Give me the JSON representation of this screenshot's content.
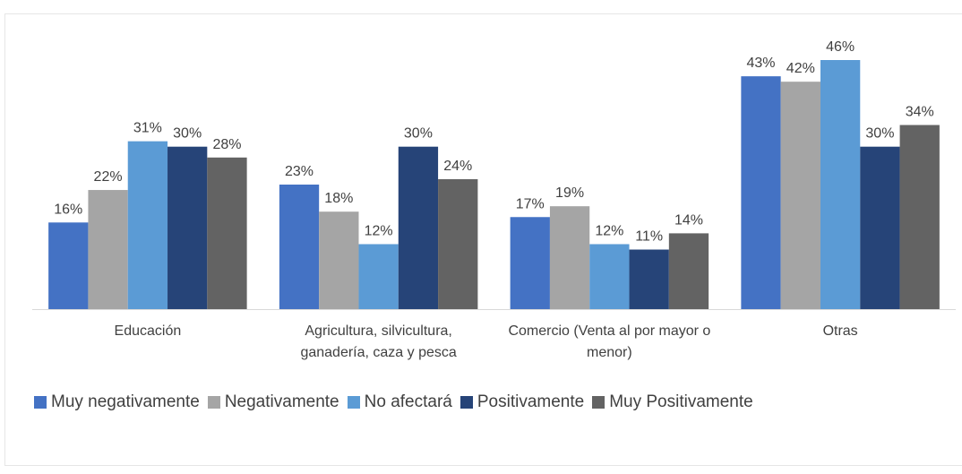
{
  "chart_data": {
    "type": "bar",
    "categories": [
      "Educación",
      "Agricultura, silvicultura, ganadería, caza y pesca",
      "Comercio (Venta al por mayor o menor)",
      "Otras"
    ],
    "series": [
      {
        "name": "Muy negativamente",
        "color": "#4472c4",
        "values": [
          16,
          23,
          17,
          43
        ],
        "value_labels": [
          "16%",
          "23%",
          "17%",
          "43%"
        ]
      },
      {
        "name": "Negativamente",
        "color": "#a5a5a5",
        "values": [
          22,
          18,
          19,
          42
        ],
        "value_labels": [
          "22%",
          "18%",
          "19%",
          "42%"
        ]
      },
      {
        "name": "No afectará",
        "color": "#5b9bd5",
        "values": [
          31,
          12,
          12,
          46
        ],
        "value_labels": [
          "31%",
          "12%",
          "12%",
          "46%"
        ]
      },
      {
        "name": "Positivamente",
        "color": "#264478",
        "values": [
          30,
          30,
          11,
          30
        ],
        "value_labels": [
          "30%",
          "30%",
          "11%",
          "30%"
        ]
      },
      {
        "name": "Muy Positivamente",
        "color": "#636363",
        "values": [
          28,
          24,
          14,
          34
        ],
        "value_labels": [
          "28%",
          "24%",
          "14%",
          "34%"
        ]
      }
    ],
    "legend": "bottom"
  }
}
